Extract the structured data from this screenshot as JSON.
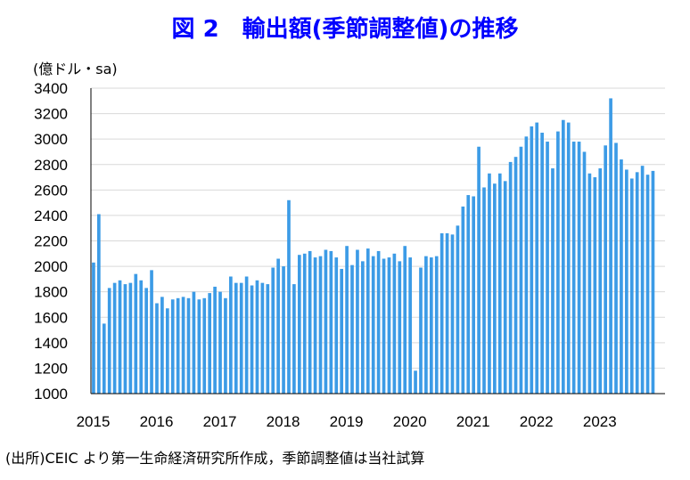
{
  "chart_data": {
    "type": "bar",
    "title": "図 2　輸出額(季節調整値)の推移",
    "unit_label": "(億ドル・sa)",
    "ylim": [
      1000,
      3400
    ],
    "yticks": [
      1000,
      1200,
      1400,
      1600,
      1800,
      2000,
      2200,
      2400,
      2600,
      2800,
      3000,
      3200,
      3400
    ],
    "x_labels": [
      "2015",
      "2016",
      "2017",
      "2018",
      "2019",
      "2020",
      "2021",
      "2022",
      "2023"
    ],
    "start": "2015-01",
    "frequency": "monthly",
    "bar_color": "#3C9BE6",
    "grid": true,
    "values": [
      2030,
      2410,
      1550,
      1830,
      1870,
      1890,
      1860,
      1870,
      1940,
      1890,
      1830,
      1970,
      1710,
      1760,
      1670,
      1740,
      1750,
      1760,
      1750,
      1800,
      1740,
      1750,
      1790,
      1840,
      1800,
      1750,
      1920,
      1870,
      1870,
      1920,
      1850,
      1890,
      1870,
      1860,
      1990,
      2060,
      2000,
      2520,
      1860,
      2090,
      2100,
      2120,
      2070,
      2080,
      2130,
      2120,
      2070,
      1980,
      2160,
      2010,
      2130,
      2040,
      2140,
      2080,
      2120,
      2060,
      2070,
      2100,
      2040,
      2160,
      2070,
      1180,
      1990,
      2080,
      2070,
      2080,
      2260,
      2260,
      2250,
      2320,
      2470,
      2560,
      2550,
      2940,
      2620,
      2730,
      2650,
      2730,
      2670,
      2820,
      2860,
      2940,
      3020,
      3100,
      3130,
      3050,
      2980,
      2770,
      3060,
      3150,
      3130,
      2980,
      2980,
      2900,
      2730,
      2700,
      2770,
      2950,
      3320,
      2970,
      2840,
      2760,
      2690,
      2740,
      2790,
      2720,
      2750
    ]
  },
  "source_note": "(出所)CEIC より第一生命経済研究所作成，季節調整値は当社試算"
}
